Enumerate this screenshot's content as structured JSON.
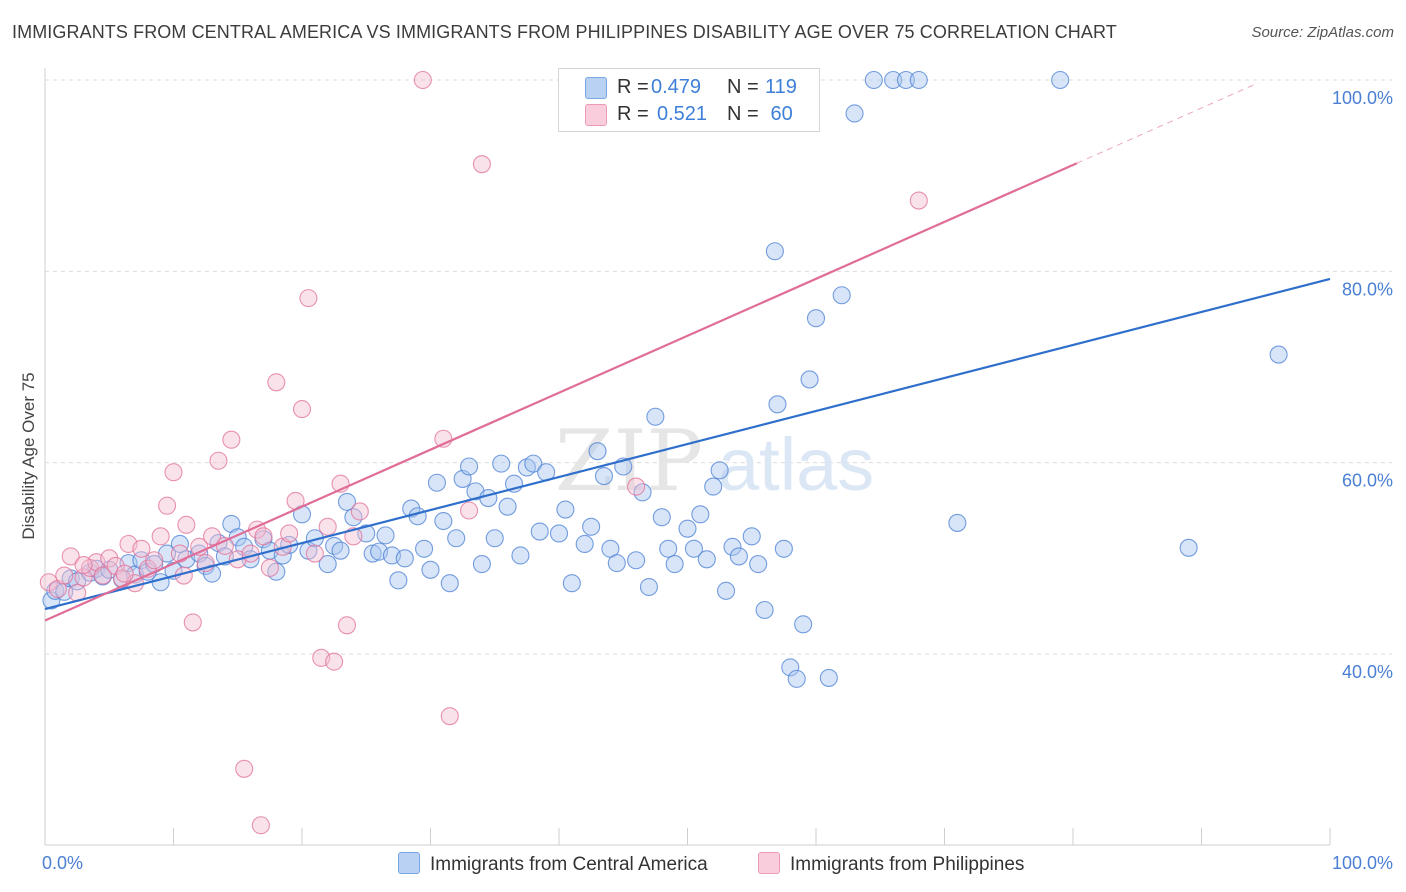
{
  "title": "IMMIGRANTS FROM CENTRAL AMERICA VS IMMIGRANTS FROM PHILIPPINES DISABILITY AGE OVER 75 CORRELATION CHART",
  "source": "Source: ZipAtlas.com",
  "watermark": {
    "zip": "ZIP",
    "atlas": "atlas"
  },
  "colors": {
    "blue": "#4a7fd4",
    "blue_fill": "#a9c6f0",
    "blue_line": "#2f6fcc",
    "pink": "#e07098",
    "pink_fill": "#f5bfd2",
    "pink_line": "#e06d98"
  },
  "legend": {
    "r_label": "R =",
    "n_label": "N =",
    "series1": {
      "r": "0.479",
      "n": "119"
    },
    "series2": {
      "r": "0.521",
      "n": " 60"
    }
  },
  "chart_data": {
    "type": "scatter",
    "xlabel": "",
    "ylabel": "Disability Age Over 75",
    "xlim": [
      0,
      100
    ],
    "ylim": [
      20,
      102
    ],
    "x_tick_labels": [
      "0.0%",
      "100.0%"
    ],
    "y_ticks": [
      {
        "value": 40,
        "label": "40.0%"
      },
      {
        "value": 60,
        "label": "60.0%"
      },
      {
        "value": 80,
        "label": "80.0%"
      },
      {
        "value": 100,
        "label": "100.0%"
      }
    ],
    "grid": "horizontal dashed",
    "series": [
      {
        "name": "Immigrants from Central America",
        "color": "#4a7fd4",
        "trend": {
          "x": [
            0,
            100
          ],
          "y": [
            44.7,
            79.2
          ]
        },
        "points": [
          [
            0.5,
            45.6
          ],
          [
            0.8,
            46.6
          ],
          [
            1.5,
            46.5
          ],
          [
            2,
            47.9
          ],
          [
            2.5,
            47.6
          ],
          [
            3.5,
            48.5
          ],
          [
            4,
            48.9
          ],
          [
            4.5,
            48.1
          ],
          [
            5,
            48.8
          ],
          [
            6,
            47.8
          ],
          [
            6.5,
            49.5
          ],
          [
            7,
            48.3
          ],
          [
            7.5,
            49.8
          ],
          [
            8,
            48.6
          ],
          [
            8.5,
            49.4
          ],
          [
            9,
            47.5
          ],
          [
            9.5,
            50.5
          ],
          [
            10,
            48.7
          ],
          [
            10.5,
            51.5
          ],
          [
            11,
            49.9
          ],
          [
            12,
            50.5
          ],
          [
            12.5,
            49.2
          ],
          [
            13,
            48.4
          ],
          [
            13.5,
            51.6
          ],
          [
            14,
            50.2
          ],
          [
            14.5,
            53.6
          ],
          [
            15,
            52.2
          ],
          [
            15.5,
            51.2
          ],
          [
            16,
            49.9
          ],
          [
            17,
            52.0
          ],
          [
            17.5,
            50.8
          ],
          [
            18,
            48.6
          ],
          [
            18.5,
            50.3
          ],
          [
            19,
            51.4
          ],
          [
            20,
            54.6
          ],
          [
            20.5,
            50.8
          ],
          [
            21,
            52.1
          ],
          [
            22,
            49.4
          ],
          [
            22.5,
            51.3
          ],
          [
            23,
            50.8
          ],
          [
            23.5,
            55.9
          ],
          [
            24,
            54.3
          ],
          [
            25,
            52.6
          ],
          [
            25.5,
            50.5
          ],
          [
            26,
            50.7
          ],
          [
            26.5,
            52.4
          ],
          [
            27,
            50.3
          ],
          [
            27.5,
            47.7
          ],
          [
            28,
            50.0
          ],
          [
            28.5,
            55.2
          ],
          [
            29,
            54.4
          ],
          [
            29.5,
            51.0
          ],
          [
            30,
            48.8
          ],
          [
            30.5,
            57.9
          ],
          [
            31,
            53.9
          ],
          [
            31.5,
            47.4
          ],
          [
            32,
            52.1
          ],
          [
            32.5,
            58.3
          ],
          [
            33,
            59.6
          ],
          [
            33.5,
            57.0
          ],
          [
            34,
            49.4
          ],
          [
            34.5,
            56.3
          ],
          [
            35,
            52.1
          ],
          [
            35.5,
            59.9
          ],
          [
            36,
            55.4
          ],
          [
            36.5,
            57.8
          ],
          [
            37,
            50.3
          ],
          [
            37.5,
            59.5
          ],
          [
            38,
            59.9
          ],
          [
            38.5,
            52.8
          ],
          [
            39,
            59.0
          ],
          [
            40,
            52.6
          ],
          [
            40.5,
            55.1
          ],
          [
            41,
            47.4
          ],
          [
            42,
            51.5
          ],
          [
            42.5,
            53.3
          ],
          [
            43,
            61.2
          ],
          [
            43.5,
            58.6
          ],
          [
            44,
            51.0
          ],
          [
            44.5,
            49.5
          ],
          [
            45,
            59.6
          ],
          [
            46,
            49.8
          ],
          [
            46.5,
            56.9
          ],
          [
            47,
            47.0
          ],
          [
            47.5,
            64.8
          ],
          [
            48,
            54.3
          ],
          [
            48.5,
            51.0
          ],
          [
            49,
            49.4
          ],
          [
            50,
            53.1
          ],
          [
            50.5,
            51.0
          ],
          [
            51,
            54.6
          ],
          [
            51.5,
            49.9
          ],
          [
            52,
            57.5
          ],
          [
            52.5,
            59.2
          ],
          [
            53,
            46.6
          ],
          [
            53.5,
            51.2
          ],
          [
            54,
            50.2
          ],
          [
            55,
            52.3
          ],
          [
            55.5,
            49.4
          ],
          [
            56,
            44.6
          ],
          [
            56.8,
            82.1
          ],
          [
            57,
            66.1
          ],
          [
            57.5,
            51.0
          ],
          [
            58,
            38.6
          ],
          [
            58.5,
            37.4
          ],
          [
            59,
            43.1
          ],
          [
            59.5,
            68.7
          ],
          [
            60,
            75.1
          ],
          [
            61,
            37.5
          ],
          [
            62,
            77.5
          ],
          [
            63,
            96.5
          ],
          [
            64.5,
            100.0
          ],
          [
            66,
            100.0
          ],
          [
            67,
            100.0
          ],
          [
            68,
            100.0
          ],
          [
            71,
            53.7
          ],
          [
            79,
            100.0
          ],
          [
            89,
            51.1
          ],
          [
            96,
            71.3
          ]
        ]
      },
      {
        "name": "Immigrants from Philippines",
        "color": "#e07098",
        "trend": {
          "x": [
            0,
            80.3
          ],
          "y": [
            43.5,
            91.3
          ]
        },
        "points": [
          [
            0.3,
            47.5
          ],
          [
            1,
            46.8
          ],
          [
            1.5,
            48.2
          ],
          [
            2,
            50.2
          ],
          [
            2.5,
            46.4
          ],
          [
            3,
            48.0
          ],
          [
            3.5,
            49.0
          ],
          [
            4,
            49.6
          ],
          [
            4.5,
            48.2
          ],
          [
            5,
            50.0
          ],
          [
            5.5,
            49.2
          ],
          [
            6,
            47.9
          ],
          [
            6.5,
            51.5
          ],
          [
            7,
            47.4
          ],
          [
            7.5,
            51.0
          ],
          [
            8,
            48.9
          ],
          [
            8.5,
            49.8
          ],
          [
            9,
            52.3
          ],
          [
            9.5,
            55.5
          ],
          [
            10,
            59.0
          ],
          [
            10.5,
            50.5
          ],
          [
            11,
            53.5
          ],
          [
            11.5,
            43.3
          ],
          [
            12,
            51.2
          ],
          [
            12.5,
            49.5
          ],
          [
            13,
            52.3
          ],
          [
            13.5,
            60.2
          ],
          [
            14,
            51.3
          ],
          [
            14.5,
            62.4
          ],
          [
            15,
            49.9
          ],
          [
            15.5,
            28.0
          ],
          [
            16,
            50.5
          ],
          [
            16.5,
            53.0
          ],
          [
            17,
            52.3
          ],
          [
            17.5,
            49.0
          ],
          [
            18,
            68.4
          ],
          [
            18.5,
            51.2
          ],
          [
            19,
            52.6
          ],
          [
            19.5,
            56.0
          ],
          [
            20,
            65.6
          ],
          [
            20.5,
            77.2
          ],
          [
            21,
            50.5
          ],
          [
            21.5,
            39.6
          ],
          [
            22,
            53.3
          ],
          [
            22.5,
            39.2
          ],
          [
            23,
            57.8
          ],
          [
            23.5,
            43.0
          ],
          [
            24,
            52.3
          ],
          [
            24.5,
            54.9
          ],
          [
            29.4,
            100.0
          ],
          [
            31,
            62.5
          ],
          [
            31.5,
            33.5
          ],
          [
            33,
            55.0
          ],
          [
            34,
            91.2
          ],
          [
            16.8,
            22.1
          ],
          [
            46,
            57.5
          ],
          [
            68,
            87.4
          ],
          [
            3,
            49.3
          ],
          [
            6.2,
            48.4
          ],
          [
            10.8,
            48.2
          ]
        ]
      }
    ]
  }
}
